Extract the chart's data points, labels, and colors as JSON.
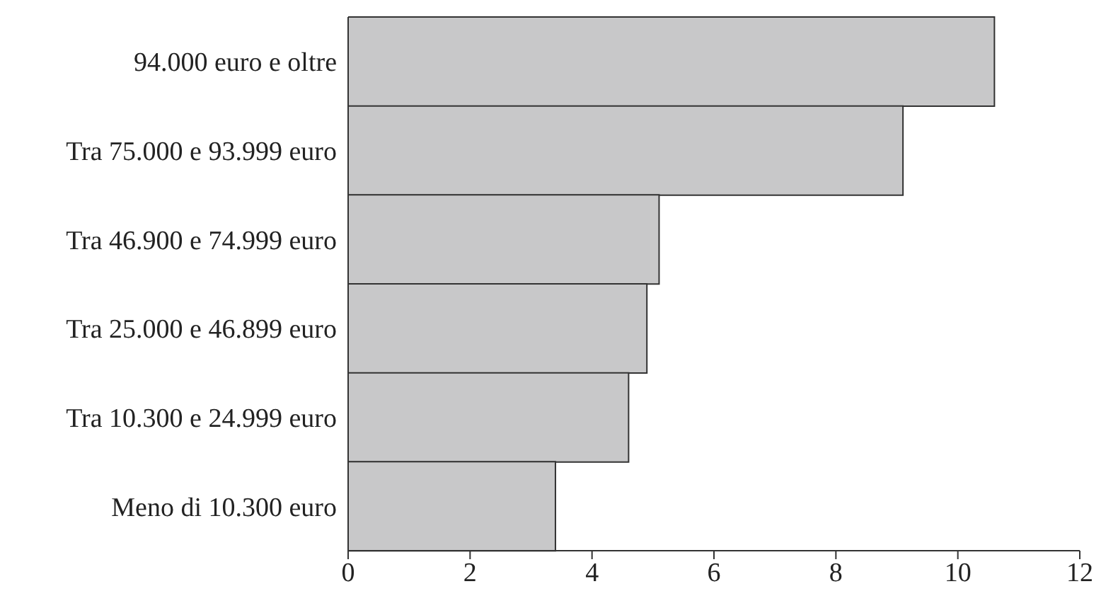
{
  "chart_data": {
    "type": "bar",
    "orientation": "horizontal",
    "categories": [
      "94.000 euro e oltre",
      "Tra 75.000 e 93.999 euro",
      "Tra 46.900 e 74.999 euro",
      "Tra 25.000 e 46.899 euro",
      "Tra 10.300 e 24.999 euro",
      "Meno di 10.300 euro"
    ],
    "values": [
      10.6,
      9.1,
      5.1,
      4.9,
      4.6,
      3.4
    ],
    "color": "#c8c8c9",
    "xlim": [
      0,
      12
    ],
    "xticks": [
      0,
      2,
      4,
      6,
      8,
      10,
      12
    ],
    "grid": false,
    "legend": false
  }
}
